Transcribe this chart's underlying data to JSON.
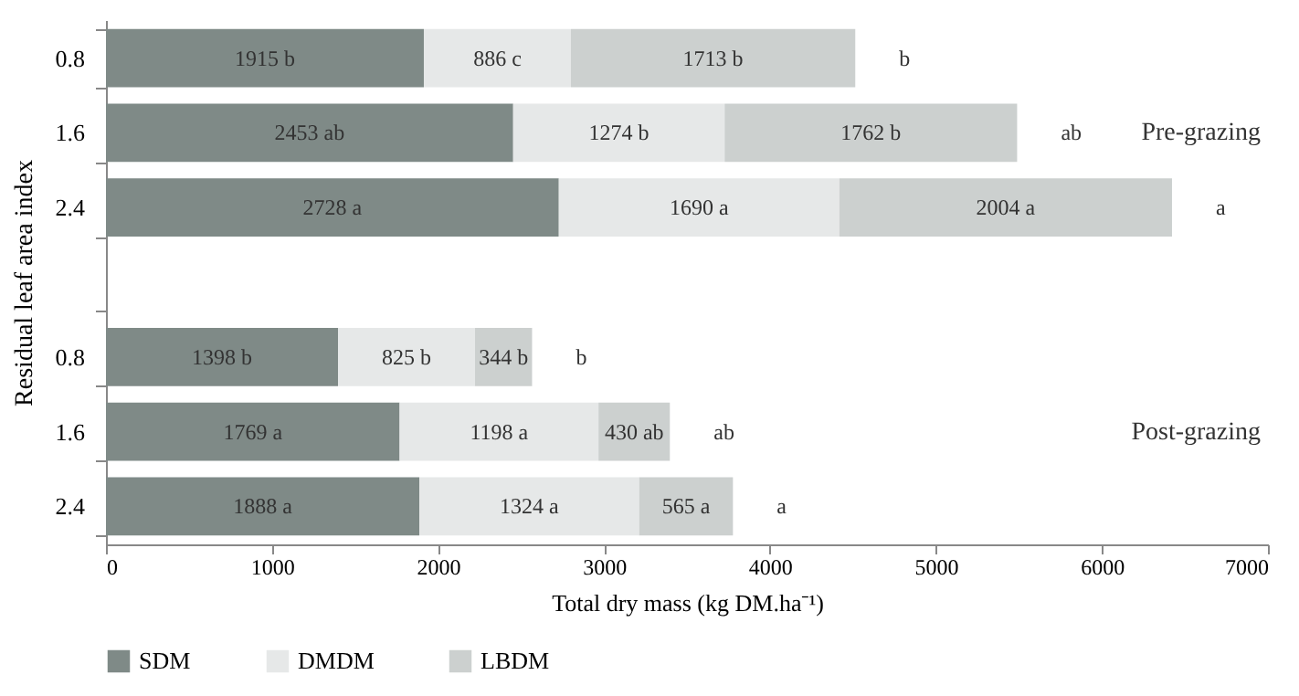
{
  "chart_data": {
    "type": "bar",
    "orientation": "horizontal",
    "stacked": true,
    "xlabel": "Total dry mass (kg DM.ha⁻¹)",
    "ylabel": "Residual leaf area index",
    "categories": [
      "0.8",
      "1.6",
      "2.4",
      null,
      "0.8",
      "1.6",
      "2.4"
    ],
    "series": [
      {
        "name": "SDM",
        "color": "#7f8a87",
        "values": [
          1915,
          2453,
          2728,
          null,
          1398,
          1769,
          1888
        ],
        "value_labels": [
          "1915 b",
          "2453 ab",
          "2728 a",
          null,
          "1398 b",
          "1769 a",
          "1888 a"
        ]
      },
      {
        "name": "DMDM",
        "color": "#e6e8e8",
        "values": [
          886,
          1274,
          1690,
          null,
          825,
          1198,
          1324
        ],
        "value_labels": [
          "886 c",
          "1274 b",
          "1690 a",
          null,
          "825 b",
          "1198 a",
          "1324 a"
        ]
      },
      {
        "name": "LBDM",
        "color": "#ccd0cf",
        "values": [
          1713,
          1762,
          2004,
          null,
          344,
          430,
          565
        ],
        "value_labels": [
          "1713 b",
          "1762 b",
          "2004 a",
          null,
          "344 b",
          "430 ab",
          "565 a"
        ]
      }
    ],
    "totals": [
      "b",
      "ab",
      "a",
      null,
      "b",
      "ab",
      "a"
    ],
    "annotations": [
      "Pre-grazing",
      "Post-grazing"
    ],
    "xlim": [
      0,
      7000
    ],
    "xticks": [
      0,
      1000,
      2000,
      3000,
      4000,
      5000,
      6000,
      7000
    ],
    "grid": false,
    "legend": "bottom"
  }
}
